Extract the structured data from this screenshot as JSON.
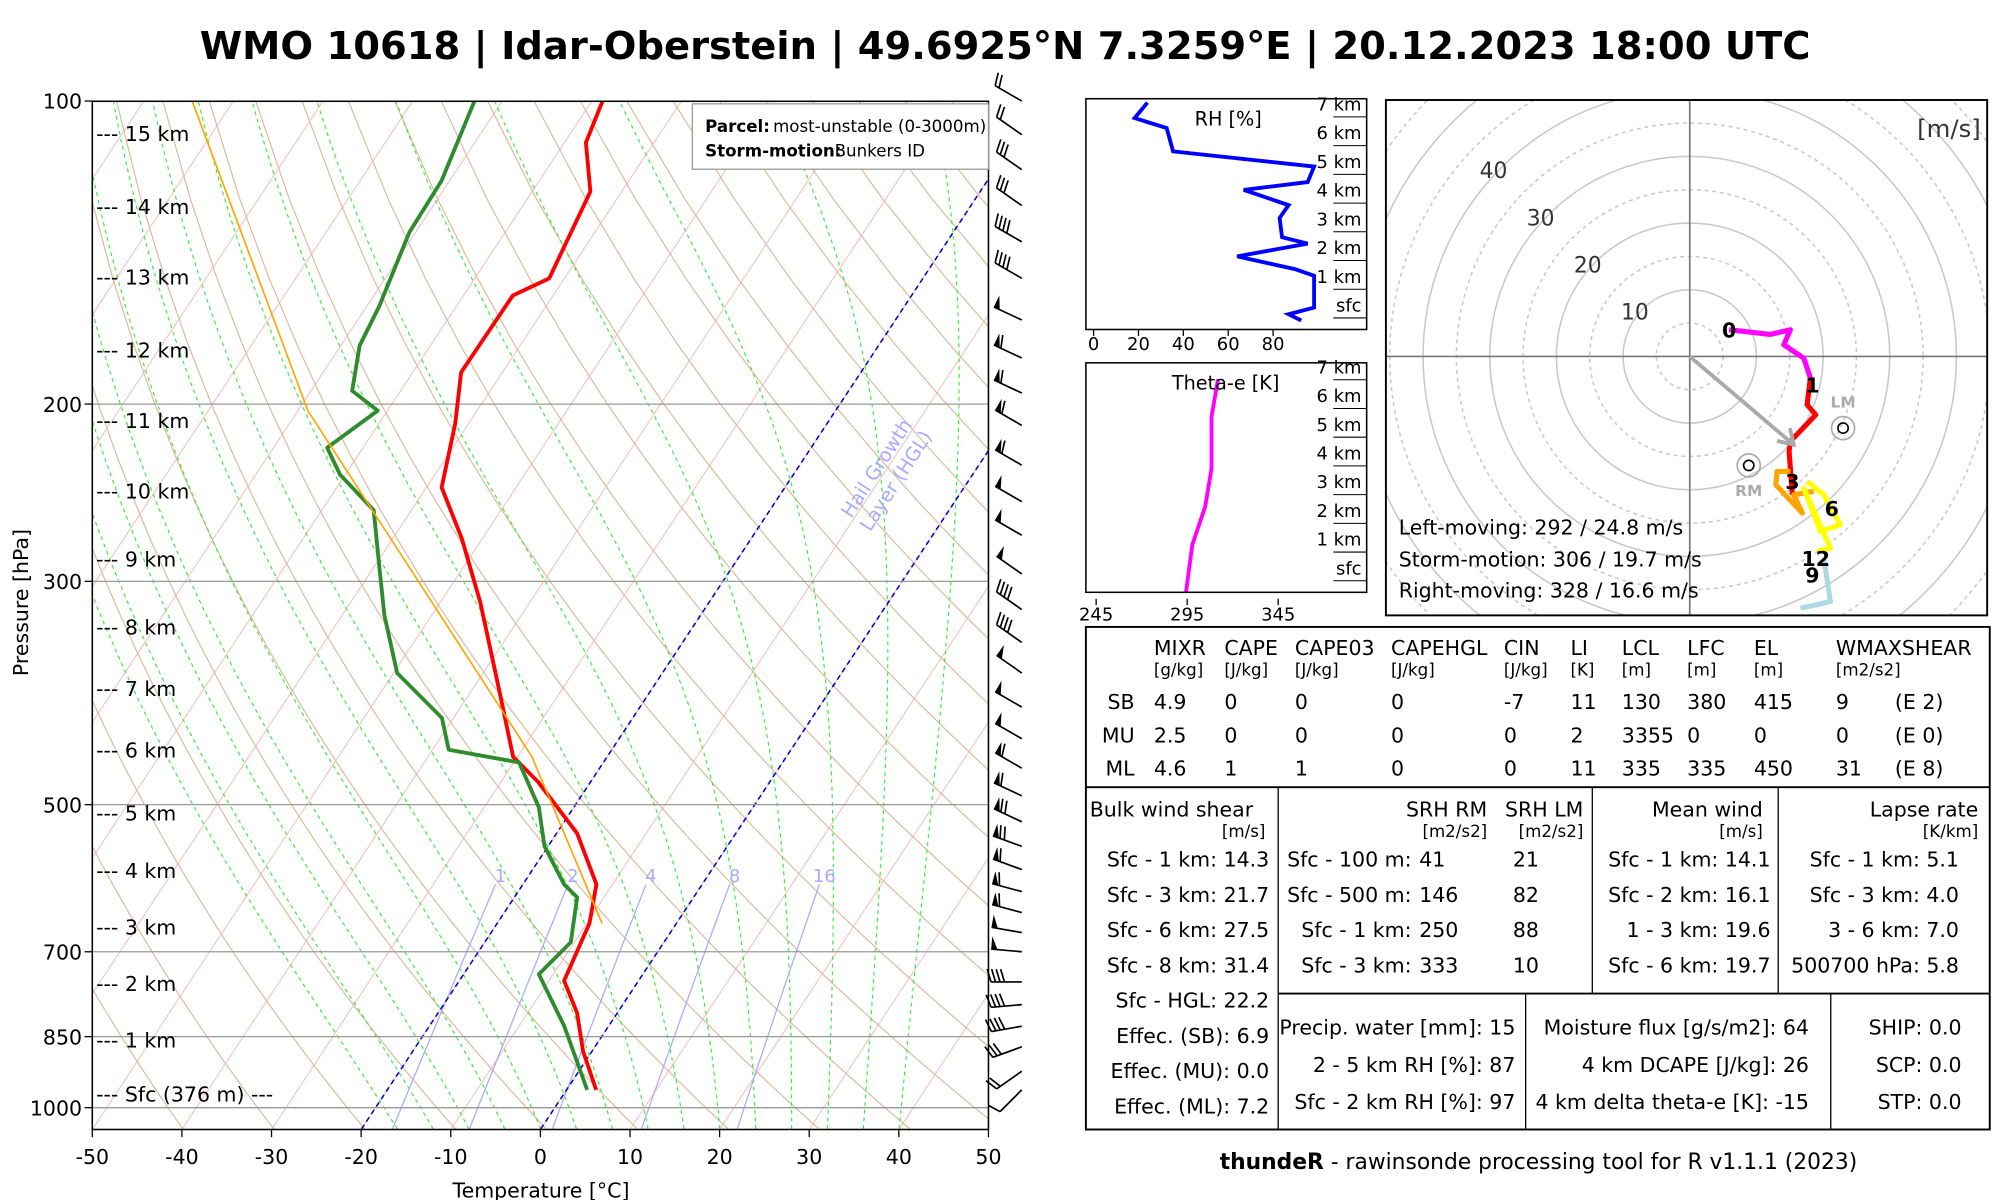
{
  "title": "WMO 10618 | Idar-Oberstein | 49.6925°N 7.3259°E | 20.12.2023 18:00 UTC",
  "footer": {
    "bold": "thundeR",
    "rest": " - rawinsonde processing tool for R v1.1.1 (2023)"
  },
  "skewt": {
    "ylabel": "Pressure [hPa]",
    "xlabel": "Temperature [°C]",
    "pressure_ticks": [
      "100",
      "200",
      "300",
      "500",
      "700",
      "850",
      "1000"
    ],
    "temp_ticks": [
      "-50",
      "-40",
      "-30",
      "-20",
      "-10",
      "0",
      "10",
      "20",
      "30",
      "40",
      "50"
    ],
    "height_labels": [
      "--- 15 km",
      "--- 14 km",
      "--- 13 km",
      "--- 12 km",
      "--- 11 km",
      "--- 10 km",
      "--- 9 km",
      "--- 8 km",
      "--- 7 km",
      "--- 6 km",
      "--- 5 km",
      "--- 4 km",
      "--- 3 km",
      "--- 2 km",
      "--- 1 km",
      "--- Sfc (376 m) ---"
    ],
    "legend": {
      "parcel_label": "Parcel:",
      "parcel_value": "most-unstable (0-3000m)",
      "storm_label": "Storm-motion:",
      "storm_value": "Bunkers ID"
    },
    "hgl_label_1": "Hail Growth",
    "hgl_label_2": "Layer (HGL)",
    "mixing_ratio_labels": [
      "1",
      "2",
      "4",
      "8",
      "16"
    ]
  },
  "chart_data": [
    {
      "type": "line",
      "title": "Skew-T log-P",
      "xlabel": "Temperature [°C]",
      "ylabel": "Pressure [hPa]",
      "xlim": [
        -50,
        50
      ],
      "ylim": [
        1050,
        100
      ],
      "series": [
        {
          "name": "temperature",
          "color": "#ff0000",
          "p": [
            960,
            879,
            805,
            748,
            656,
            600,
            534,
            475,
            448,
            387,
            315,
            272,
            242,
            209,
            186,
            156,
            150,
            123,
            110,
            100
          ],
          "t": [
            3.3,
            -1.0,
            -4.5,
            -8.3,
            -9.7,
            -11.8,
            -17.7,
            -25.8,
            -30.5,
            -36.7,
            -45.5,
            -52.3,
            -58.3,
            -61.5,
            -64.6,
            -64.5,
            -61.7,
            -63.5,
            -67.6,
            -68.8
          ]
        },
        {
          "name": "dewpoint",
          "color": "#2e8b2e",
          "p": [
            960,
            829,
            737,
            685,
            618,
            600,
            550,
            503,
            454,
            441,
            410,
            370,
            324,
            288,
            255,
            235,
            221,
            203,
            194,
            175,
            160,
            135,
            120,
            100
          ],
          "t": [
            2.3,
            -5.0,
            -11.6,
            -10.4,
            -13.0,
            -15.4,
            -20.4,
            -23.9,
            -29.4,
            -38.2,
            -41.3,
            -49.6,
            -55.3,
            -59.7,
            -64.2,
            -70.6,
            -74.0,
            -71.1,
            -75.4,
            -77.9,
            -78.6,
            -80.7,
            -80.9,
            -83.1
          ]
        },
        {
          "name": "parcel",
          "color": "#ffa500",
          "p": [
            656,
            448,
            203,
            100
          ],
          "t": [
            -8.3,
            -28.4,
            -78.9,
            -114.6
          ]
        }
      ],
      "isotherms_highlight": [
        0,
        -20
      ],
      "mixing_ratios": [
        1,
        2,
        4,
        8,
        16
      ],
      "wind_barbs": [
        {
          "p": 960,
          "dir": 225,
          "spd": 5
        },
        {
          "p": 920,
          "dir": 235,
          "spd": 10
        },
        {
          "p": 870,
          "dir": 250,
          "spd": 15
        },
        {
          "p": 830,
          "dir": 260,
          "spd": 20
        },
        {
          "p": 790,
          "dir": 265,
          "spd": 20
        },
        {
          "p": 750,
          "dir": 270,
          "spd": 20
        },
        {
          "p": 700,
          "dir": 275,
          "spd": 25
        },
        {
          "p": 670,
          "dir": 280,
          "spd": 25
        },
        {
          "p": 640,
          "dir": 285,
          "spd": 30
        },
        {
          "p": 610,
          "dir": 285,
          "spd": 30
        },
        {
          "p": 580,
          "dir": 290,
          "spd": 30
        },
        {
          "p": 550,
          "dir": 290,
          "spd": 35
        },
        {
          "p": 520,
          "dir": 295,
          "spd": 35
        },
        {
          "p": 490,
          "dir": 295,
          "spd": 30
        },
        {
          "p": 460,
          "dir": 300,
          "spd": 30
        },
        {
          "p": 430,
          "dir": 300,
          "spd": 25
        },
        {
          "p": 400,
          "dir": 300,
          "spd": 25
        },
        {
          "p": 370,
          "dir": 305,
          "spd": 25
        },
        {
          "p": 345,
          "dir": 305,
          "spd": 20
        },
        {
          "p": 320,
          "dir": 305,
          "spd": 20
        },
        {
          "p": 295,
          "dir": 305,
          "spd": 25
        },
        {
          "p": 270,
          "dir": 300,
          "spd": 25
        },
        {
          "p": 250,
          "dir": 300,
          "spd": 25
        },
        {
          "p": 230,
          "dir": 300,
          "spd": 30
        },
        {
          "p": 210,
          "dir": 300,
          "spd": 30
        },
        {
          "p": 195,
          "dir": 295,
          "spd": 30
        },
        {
          "p": 180,
          "dir": 295,
          "spd": 30
        },
        {
          "p": 165,
          "dir": 295,
          "spd": 25
        },
        {
          "p": 150,
          "dir": 300,
          "spd": 20
        },
        {
          "p": 138,
          "dir": 300,
          "spd": 20
        },
        {
          "p": 127,
          "dir": 305,
          "spd": 15
        },
        {
          "p": 117,
          "dir": 305,
          "spd": 15
        },
        {
          "p": 108,
          "dir": 305,
          "spd": 10
        },
        {
          "p": 100,
          "dir": 300,
          "spd": 10
        }
      ]
    },
    {
      "type": "line",
      "title": "RH [%]",
      "xlim": [
        0,
        100
      ],
      "x_ticks": [
        "0",
        "20",
        "40",
        "60",
        "80"
      ],
      "height_labels": [
        "7 km",
        "6 km",
        "5 km",
        "4 km",
        "3 km",
        "2 km",
        "1 km",
        "sfc"
      ],
      "height_km": [
        0,
        0.22,
        0.45,
        1.56,
        1.79,
        2.23,
        2.68,
        2.9,
        3.57,
        4.02,
        4.55,
        4.82,
        5.36,
        5.89,
        6.7,
        7.05,
        7.59
      ],
      "values": [
        92.6,
        86.9,
        98.3,
        98.3,
        89.7,
        64,
        95.4,
        84,
        82.9,
        86.9,
        66.9,
        95.4,
        98.3,
        35.4,
        32.6,
        18.3,
        24
      ],
      "color": "#0000ff"
    },
    {
      "type": "line",
      "title": "Theta-e [K]",
      "xlim": [
        245,
        365
      ],
      "x_ticks": [
        "245",
        "295",
        "345"
      ],
      "height_labels": [
        "7 km",
        "6 km",
        "5 km",
        "4 km",
        "3 km",
        "2 km",
        "1 km",
        "sfc"
      ],
      "height_km": [
        -0.35,
        0,
        1.34,
        2.68,
        4.0,
        5.8,
        7.1
      ],
      "values": [
        294.3,
        295,
        297.8,
        304.9,
        308.4,
        308.4,
        311.9
      ],
      "color": "#ff00ff"
    },
    {
      "type": "line",
      "title": "Hodograph",
      "unit_label": "[m/s]",
      "ring_labels": [
        "10",
        "20",
        "30",
        "40"
      ],
      "segments": [
        {
          "name": "0-1 km",
          "color": "#ff00ff",
          "u": [
            5.9,
            12.1,
            15.1,
            14.1,
            17.1,
            18.1
          ],
          "v": [
            4.0,
            3.3,
            4.0,
            1.75,
            -0.25,
            -3.25
          ]
        },
        {
          "name": "1-3 km",
          "color": "#ff0000",
          "u": [
            18.1,
            17.6,
            18.9,
            15.1,
            14.9,
            15.4
          ],
          "v": [
            -3.25,
            -7.25,
            -8.75,
            -12.75,
            -14.25,
            -20.75
          ]
        },
        {
          "name": "3-6 km",
          "color": "#ffa500",
          "u": [
            15.1,
            13.1,
            12.9,
            16.9,
            15.6,
            18.6
          ],
          "v": [
            -17.25,
            -17.25,
            -19.25,
            -23.5,
            -20.75,
            -20.25
          ]
        },
        {
          "name": "6-9 km",
          "color": "#ffff00",
          "u": [
            17.6,
            20.1,
            22.6,
            19.6,
            17.1,
            21.1,
            19.1
          ],
          "v": [
            -18.75,
            -20.75,
            -25.25,
            -26.25,
            -19.75,
            -28.75,
            -29.25
          ]
        },
        {
          "name": "9-12 km",
          "color": "#add8e6",
          "u": [
            20.1,
            21.1,
            19.1,
            16.6
          ],
          "v": [
            -30.25,
            -36.75,
            -37.25,
            -37.75
          ]
        }
      ],
      "height_marks": [
        {
          "label": "0",
          "u": 5.9,
          "v": 4
        },
        {
          "label": "1",
          "u": 18.4,
          "v": -4.25
        },
        {
          "label": "3",
          "u": 15.4,
          "v": -18.75
        },
        {
          "label": "6",
          "u": 21.3,
          "v": -22.75
        },
        {
          "label": "12",
          "u": 18.9,
          "v": -30.25
        },
        {
          "label": "9",
          "u": 18.4,
          "v": -32.75
        }
      ],
      "storm_vector": {
        "u": 15.6,
        "v": -13.25
      },
      "lm": {
        "label": "LM",
        "u": 23,
        "v": -10.75
      },
      "rm": {
        "label": "RM",
        "u": 8.85,
        "v": -16.35
      },
      "motion_text": [
        "Left-moving: 292 / 24.8 m/s",
        "Storm-motion: 306 / 19.7 m/s",
        "Right-moving: 328 / 16.6 m/s"
      ]
    }
  ],
  "params": {
    "headers": [
      "MIXR",
      "CAPE",
      "CAPE03",
      "CAPEHGL",
      "CIN",
      "LI",
      "LCL",
      "LFC",
      "EL",
      "WMAXSHEAR"
    ],
    "units": [
      "[g/kg]",
      "[J/kg]",
      "[J/kg]",
      "[J/kg]",
      "[J/kg]",
      "[K]",
      "[m]",
      "[m]",
      "[m]",
      "[m2/s2]"
    ],
    "rows": [
      {
        "label": "SB",
        "values": [
          "4.9",
          "0",
          "0",
          "0",
          "-7",
          "11",
          "130",
          "380",
          "415",
          "9",
          "(E 2)"
        ]
      },
      {
        "label": "MU",
        "values": [
          "2.5",
          "0",
          "0",
          "0",
          "0",
          "2",
          "3355",
          "0",
          "0",
          "0",
          "(E 0)"
        ]
      },
      {
        "label": "ML",
        "values": [
          "4.6",
          "1",
          "1",
          "0",
          "0",
          "11",
          "335",
          "335",
          "450",
          "31",
          "(E 8)"
        ]
      }
    ]
  },
  "bulk_shear": {
    "title": "Bulk wind shear",
    "unit": "[m/s]",
    "rows": [
      "Sfc - 1 km: 14.3",
      "Sfc - 3 km: 21.7",
      "Sfc - 6 km: 27.5",
      "Sfc - 8 km: 31.4",
      "Sfc - HGL: 22.2",
      "Effec. (SB): 6.9",
      "Effec. (MU): 0.0",
      "Effec. (ML): 7.2"
    ]
  },
  "srh": {
    "rm_title": "SRH RM",
    "lm_title": "SRH LM",
    "rm_unit": "[m2/s2]",
    "lm_unit": "[m2/s2]",
    "rows": [
      {
        "label": "Sfc - 100 m:",
        "rm": "41",
        "lm": "21"
      },
      {
        "label": "Sfc - 500 m:",
        "rm": "146",
        "lm": "82"
      },
      {
        "label": "Sfc - 1 km:",
        "rm": "250",
        "lm": "88"
      },
      {
        "label": "Sfc - 3 km:",
        "rm": "333",
        "lm": "10"
      }
    ]
  },
  "mean_wind": {
    "title": "Mean wind",
    "unit": "[m/s]",
    "rows": [
      "Sfc - 1 km: 14.1",
      "Sfc - 2 km: 16.1",
      "1 - 3 km: 19.6",
      "Sfc - 6 km: 19.7"
    ]
  },
  "lapse_rate": {
    "title": "Lapse rate",
    "unit": "[K/km]",
    "rows": [
      "Sfc - 1 km: 5.1",
      "Sfc - 3 km: 4.0",
      "3 - 6 km: 7.0",
      "500700 hPa: 5.8"
    ]
  },
  "moisture": {
    "rows": [
      "Precip. water [mm]: 15",
      "2 - 5 km RH [%]: 87",
      "Sfc - 2 km RH [%]: 97"
    ]
  },
  "misc": {
    "rows": [
      "Moisture flux [g/s/m2]: 64",
      "4 km DCAPE [J/kg]: 26",
      "4 km delta theta-e [K]: -15"
    ]
  },
  "composite": {
    "rows": [
      "SHIP: 0.0",
      "SCP: 0.0",
      "STP: 0.0"
    ]
  }
}
